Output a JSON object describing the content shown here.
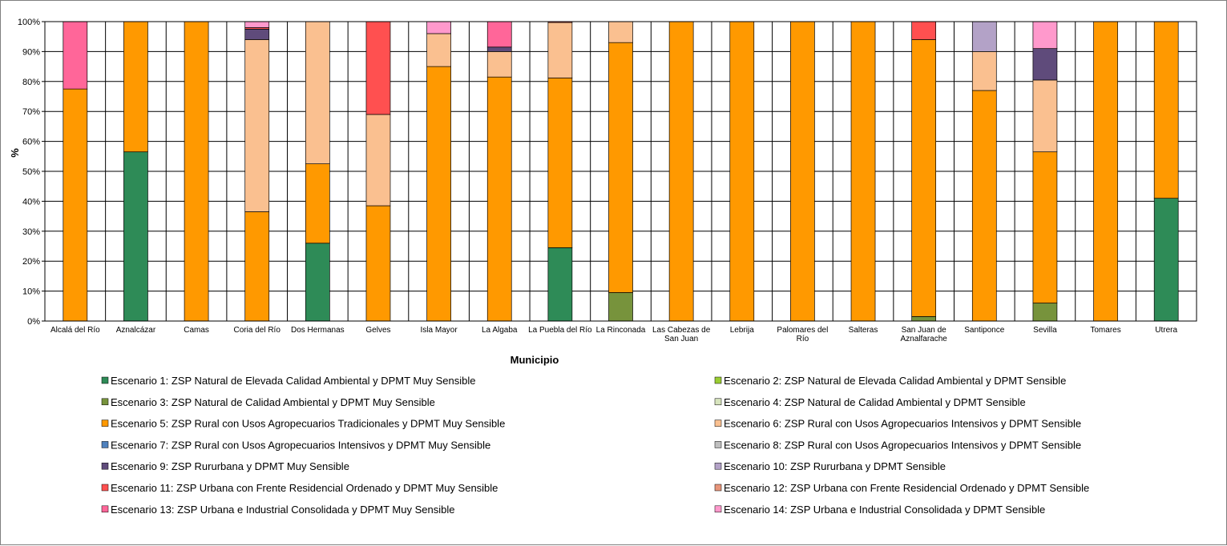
{
  "chart_data": {
    "type": "bar",
    "stacked": true,
    "title": "",
    "xlabel": "Municipio",
    "ylabel": "%",
    "ylim": [
      0,
      100
    ],
    "yticks": [
      "0%",
      "10%",
      "20%",
      "30%",
      "40%",
      "50%",
      "60%",
      "70%",
      "80%",
      "90%",
      "100%"
    ],
    "grid": true,
    "legend_position": "bottom",
    "categories": [
      "Alcalá del Río",
      "Aznalcázar",
      "Camas",
      "Coria del Río",
      "Dos Hermanas",
      "Gelves",
      "Isla Mayor",
      "La Algaba",
      "La Puebla del Río",
      "La Rinconada",
      "Las Cabezas de San Juan",
      "Lebrija",
      "Palomares del Río",
      "Salteras",
      "San Juan de Aznalfarache",
      "Santiponce",
      "Sevilla",
      "Tomares",
      "Utrera"
    ],
    "category_lines": [
      [
        "Alcalá del Río"
      ],
      [
        "Aznalcázar"
      ],
      [
        "Camas"
      ],
      [
        "Coria del Río"
      ],
      [
        "Dos Hermanas"
      ],
      [
        "Gelves"
      ],
      [
        "Isla Mayor"
      ],
      [
        "La Algaba"
      ],
      [
        "La Puebla del Río"
      ],
      [
        "La Rinconada"
      ],
      [
        "Las Cabezas de",
        "San Juan"
      ],
      [
        "Lebrija"
      ],
      [
        "Palomares del",
        "Río"
      ],
      [
        "Salteras"
      ],
      [
        "San Juan de",
        "Aznalfarache"
      ],
      [
        "Santiponce"
      ],
      [
        "Sevilla"
      ],
      [
        "Tomares"
      ],
      [
        "Utrera"
      ]
    ],
    "series": [
      {
        "name": "Escenario 1: ZSP Natural de Elevada Calidad Ambiental y DPMT Muy Sensible",
        "color": "#2e8b57",
        "values": [
          0,
          56.5,
          0,
          0,
          26,
          0,
          0,
          0,
          24.5,
          0,
          0,
          0,
          0,
          0,
          0,
          0,
          0,
          0,
          41
        ]
      },
      {
        "name": "Escenario 2: ZSP Natural de Elevada Calidad Ambiental y DPMT Sensible",
        "color": "#9acd32",
        "values": [
          0,
          0,
          0,
          0,
          0,
          0,
          0,
          0,
          0,
          0,
          0,
          0,
          0,
          0,
          0,
          0,
          0,
          0,
          0
        ]
      },
      {
        "name": "Escenario 3: ZSP Natural de Calidad Ambiental y DPMT Muy Sensible",
        "color": "#77933c",
        "values": [
          0,
          0,
          0,
          0,
          0,
          0,
          0,
          0,
          0,
          9.5,
          0,
          0,
          0,
          0,
          1.5,
          0,
          6,
          0,
          0
        ]
      },
      {
        "name": "Escenario 4: ZSP Natural de Calidad Ambiental y DPMT Sensible",
        "color": "#d7e4bd",
        "values": [
          0,
          0,
          0,
          0,
          0,
          0,
          0,
          0,
          0,
          0,
          0,
          0,
          0,
          0,
          0,
          0,
          0,
          0,
          0
        ]
      },
      {
        "name": "Escenario 5: ZSP Rural con Usos Agropecuarios Tradicionales y DPMT Muy Sensible",
        "color": "#ff9900",
        "values": [
          77.5,
          43.5,
          100,
          36.5,
          26.5,
          38.5,
          85,
          81.5,
          56.7,
          83.5,
          100,
          100,
          100,
          100,
          92.5,
          77,
          50.5,
          100,
          59
        ]
      },
      {
        "name": "Escenario 6: ZSP Rural con Usos Agropecuarios Intensivos y DPMT Sensible",
        "color": "#fac090",
        "values": [
          0,
          0,
          0,
          57.5,
          47.5,
          30.5,
          11,
          8.5,
          18.5,
          7,
          0,
          0,
          0,
          0,
          0,
          13,
          24,
          0,
          0
        ]
      },
      {
        "name": "Escenario 7: ZSP Rural con Usos Agropecuarios Intensivos y DPMT Muy Sensible",
        "color": "#4f81bd",
        "values": [
          0,
          0,
          0,
          0,
          0,
          0,
          0,
          0,
          0,
          0,
          0,
          0,
          0,
          0,
          0,
          0,
          0,
          0,
          0
        ]
      },
      {
        "name": "Escenario 8: ZSP Rural con Usos Agropecuarios Intensivos y DPMT Sensible",
        "color": "#bfbfbf",
        "values": [
          0,
          0,
          0,
          0,
          0,
          0,
          0,
          0,
          0,
          0,
          0,
          0,
          0,
          0,
          0,
          0,
          0,
          0,
          0
        ]
      },
      {
        "name": "Escenario 9: ZSP Rururbana y DPMT Muy Sensible",
        "color": "#5f4b7b",
        "values": [
          0,
          0,
          0,
          3.5,
          0,
          0,
          0,
          1.5,
          0,
          0,
          0,
          0,
          0,
          0,
          0,
          0,
          10.5,
          0,
          0
        ]
      },
      {
        "name": "Escenario 10: ZSP Rururbana y DPMT Sensible",
        "color": "#b3a2c7",
        "values": [
          0,
          0,
          0,
          0,
          0,
          0,
          0,
          0,
          0,
          0,
          0,
          0,
          0,
          0,
          0,
          10,
          0,
          0,
          0
        ]
      },
      {
        "name": "Escenario 11: ZSP Urbana con Frente Residencial Ordenado y DPMT Muy Sensible",
        "color": "#ff5050",
        "values": [
          0,
          0,
          0,
          0.5,
          0,
          31,
          0,
          0,
          0.3,
          0,
          0,
          0,
          0,
          0,
          6,
          0,
          0,
          0,
          0
        ]
      },
      {
        "name": "Escenario 12: ZSP Urbana con Frente Residencial Ordenado y DPMT Sensible",
        "color": "#e8957a",
        "values": [
          0,
          0,
          0,
          0,
          0,
          0,
          0,
          0,
          0,
          0,
          0,
          0,
          0,
          0,
          0,
          0,
          0,
          0,
          0
        ]
      },
      {
        "name": "Escenario 13: ZSP Urbana e Industrial Consolidada y DPMT Muy Sensible",
        "color": "#ff6699",
        "values": [
          22.5,
          0,
          0,
          0,
          0,
          0,
          0,
          8.5,
          0,
          0,
          0,
          0,
          0,
          0,
          0,
          0,
          0,
          0,
          0
        ]
      },
      {
        "name": "Escenario 14: ZSP Urbana e Industrial Consolidada y DPMT Sensible",
        "color": "#ff99cc",
        "values": [
          0,
          0,
          0,
          2,
          0,
          0,
          4,
          0,
          0,
          0,
          0,
          0,
          0,
          0,
          0,
          0,
          9,
          0,
          0
        ]
      }
    ]
  }
}
